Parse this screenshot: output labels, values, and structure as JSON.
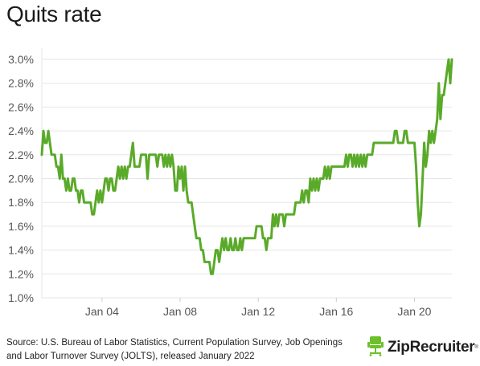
{
  "source_text": "Source: U.S. Bureau of Labor Statistics, Current Population Survey, Job Openings and Labor Turnover Survey (JOLTS), released January 2022",
  "brand": {
    "name": "ZipRecruiter",
    "mark": "®",
    "icon": "chair-icon"
  },
  "colors": {
    "line": "#5aaa2a",
    "grid": "#e6e6e6",
    "text": "#555555",
    "brand_green": "#6cc12a"
  },
  "chart_data": {
    "type": "line",
    "title": "Quits rate",
    "xlabel": "",
    "ylabel": "",
    "ylim": [
      1.0,
      3.0
    ],
    "xlim": [
      "2000-12",
      "2021-12"
    ],
    "grid": "horizontal",
    "y_ticks": [
      "1.0%",
      "1.2%",
      "1.4%",
      "1.6%",
      "1.8%",
      "2.0%",
      "2.2%",
      "2.4%",
      "2.6%",
      "2.8%",
      "3.0%"
    ],
    "x_ticks": [
      {
        "label": "Jan 04",
        "date": "2004-01"
      },
      {
        "label": "Jan 08",
        "date": "2008-01"
      },
      {
        "label": "Jan 12",
        "date": "2012-01"
      },
      {
        "label": "Jan 16",
        "date": "2016-01"
      },
      {
        "label": "Jan 20",
        "date": "2020-01"
      }
    ],
    "series": [
      {
        "start": "2000-12",
        "frequency": "monthly",
        "values": [
          2.2,
          2.4,
          2.3,
          2.3,
          2.4,
          2.3,
          2.2,
          2.2,
          2.2,
          2.1,
          2.1,
          2.0,
          2.2,
          2.0,
          2.0,
          1.9,
          2.0,
          1.9,
          1.9,
          2.0,
          2.0,
          1.9,
          1.9,
          1.8,
          1.9,
          1.9,
          1.8,
          1.8,
          1.8,
          1.8,
          1.8,
          1.7,
          1.7,
          1.8,
          1.9,
          1.8,
          1.9,
          1.8,
          1.9,
          2.0,
          2.0,
          1.9,
          2.0,
          2.0,
          1.9,
          1.9,
          2.0,
          2.1,
          2.0,
          2.1,
          2.0,
          2.1,
          2.0,
          2.1,
          2.1,
          2.2,
          2.3,
          2.1,
          2.1,
          2.1,
          2.1,
          2.2,
          2.2,
          2.2,
          2.2,
          2.0,
          2.2,
          2.2,
          2.2,
          2.2,
          2.2,
          2.1,
          2.2,
          2.2,
          2.2,
          2.1,
          2.2,
          2.1,
          2.2,
          2.1,
          2.2,
          2.1,
          1.9,
          1.9,
          2.1,
          2.0,
          2.1,
          1.9,
          2.1,
          1.9,
          1.8,
          1.8,
          1.8,
          1.7,
          1.6,
          1.5,
          1.5,
          1.5,
          1.4,
          1.4,
          1.3,
          1.3,
          1.3,
          1.3,
          1.2,
          1.2,
          1.3,
          1.4,
          1.4,
          1.3,
          1.4,
          1.5,
          1.4,
          1.5,
          1.4,
          1.4,
          1.5,
          1.4,
          1.4,
          1.5,
          1.4,
          1.4,
          1.5,
          1.4,
          1.5,
          1.5,
          1.5,
          1.5,
          1.5,
          1.5,
          1.5,
          1.5,
          1.6,
          1.6,
          1.6,
          1.6,
          1.5,
          1.5,
          1.4,
          1.5,
          1.5,
          1.5,
          1.7,
          1.6,
          1.7,
          1.6,
          1.7,
          1.7,
          1.7,
          1.6,
          1.7,
          1.7,
          1.7,
          1.7,
          1.7,
          1.7,
          1.8,
          1.8,
          1.8,
          1.8,
          1.9,
          1.8,
          1.9,
          1.9,
          1.8,
          2.0,
          1.9,
          2.0,
          1.9,
          2.0,
          1.9,
          2.0,
          2.0,
          2.0,
          2.1,
          2.0,
          2.1,
          2.0,
          2.1,
          2.1,
          2.1,
          2.1,
          2.1,
          2.1,
          2.1,
          2.1,
          2.1,
          2.2,
          2.1,
          2.2,
          2.2,
          2.1,
          2.2,
          2.1,
          2.2,
          2.1,
          2.2,
          2.1,
          2.2,
          2.1,
          2.2,
          2.2,
          2.2,
          2.2,
          2.3,
          2.3,
          2.3,
          2.3,
          2.3,
          2.3,
          2.3,
          2.3,
          2.3,
          2.3,
          2.3,
          2.3,
          2.3,
          2.4,
          2.4,
          2.3,
          2.3,
          2.3,
          2.3,
          2.4,
          2.4,
          2.3,
          2.3,
          2.3,
          2.3,
          2.3,
          2.1,
          1.8,
          1.6,
          1.7,
          2.0,
          2.3,
          2.1,
          2.2,
          2.4,
          2.3,
          2.4,
          2.3,
          2.4,
          2.5,
          2.8,
          2.5,
          2.7,
          2.7,
          2.8,
          2.9,
          3.0,
          2.8,
          3.0
        ]
      }
    ]
  }
}
